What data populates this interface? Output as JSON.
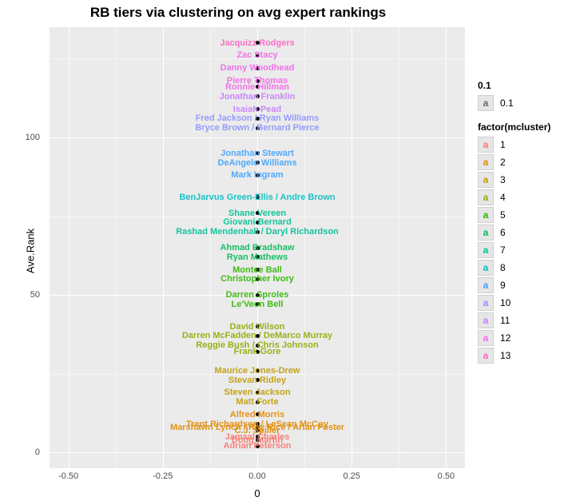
{
  "title": "RB tiers via clustering on avg expert rankings",
  "axes": {
    "xlabel": "0",
    "ylabel": "Ave.Rank",
    "xlim": [
      -0.55,
      0.55
    ],
    "ylim": [
      -5,
      135
    ],
    "xticks": [
      -0.5,
      -0.25,
      0.0,
      0.25,
      0.5
    ],
    "xtick_labels": [
      "-0.50",
      "-0.25",
      "0.00",
      "0.25",
      "0.50"
    ],
    "yticks": [
      0,
      50,
      100
    ],
    "ytick_labels": [
      "0",
      "50",
      "100"
    ],
    "xminor": [
      -0.375,
      -0.125,
      0.125,
      0.375
    ],
    "yminor": [
      25,
      75,
      125
    ],
    "major_grid_color": "#ffffff",
    "minor_grid_color": "#f5f5f5",
    "panel_bg": "#ebebeb",
    "label_fontsize": 13,
    "tick_fontsize": 11,
    "title_fontsize": 17
  },
  "points": [
    {
      "name": "Adrian Peterson",
      "y": 2,
      "cluster": 1
    },
    {
      "name": "Doug Martin",
      "y": 4,
      "cluster": 1
    },
    {
      "name": "Jamaal Charles",
      "y": 5,
      "cluster": 1
    },
    {
      "name": "C.J. Spiller",
      "y": 7,
      "cluster": 2
    },
    {
      "name": "Marshawn Lynch / Ray Rice / Arian Foster",
      "y": 8,
      "cluster": 2
    },
    {
      "name": "Trent Richardson / LeSean McCoy",
      "y": 9,
      "cluster": 2
    },
    {
      "name": "Alfred Morris",
      "y": 12,
      "cluster": 2
    },
    {
      "name": "Matt Forte",
      "y": 16,
      "cluster": 3
    },
    {
      "name": "Steven Jackson",
      "y": 19,
      "cluster": 3
    },
    {
      "name": "Stevan Ridley",
      "y": 23,
      "cluster": 3
    },
    {
      "name": "Maurice Jones-Drew",
      "y": 26,
      "cluster": 3
    },
    {
      "name": "Frank Gore",
      "y": 32,
      "cluster": 4
    },
    {
      "name": "Reggie Bush / Chris Johnson",
      "y": 34,
      "cluster": 4
    },
    {
      "name": "Darren McFadden / DeMarco Murray",
      "y": 37,
      "cluster": 4
    },
    {
      "name": "David Wilson",
      "y": 40,
      "cluster": 4
    },
    {
      "name": "Le'Veon Bell",
      "y": 47,
      "cluster": 5
    },
    {
      "name": "Darren Sproles",
      "y": 50,
      "cluster": 5
    },
    {
      "name": "Christopher Ivory",
      "y": 55,
      "cluster": 5
    },
    {
      "name": "Montee Ball",
      "y": 58,
      "cluster": 5
    },
    {
      "name": "Ryan Mathews",
      "y": 62,
      "cluster": 6
    },
    {
      "name": "Ahmad Bradshaw",
      "y": 65,
      "cluster": 6
    },
    {
      "name": "Rashad Mendenhall / Daryl Richardson",
      "y": 70,
      "cluster": 7
    },
    {
      "name": "Giovani Bernard",
      "y": 73,
      "cluster": 7
    },
    {
      "name": "Shane Vereen",
      "y": 76,
      "cluster": 7
    },
    {
      "name": "BenJarvus Green-Ellis / Andre Brown",
      "y": 81,
      "cluster": 8
    },
    {
      "name": "Mark Ingram",
      "y": 88,
      "cluster": 9
    },
    {
      "name": "DeAngelo Williams",
      "y": 92,
      "cluster": 9
    },
    {
      "name": "Jonathan Stewart",
      "y": 95,
      "cluster": 9
    },
    {
      "name": "Bryce Brown / Bernard Pierce",
      "y": 103,
      "cluster": 10
    },
    {
      "name": "Fred Jackson / Ryan Williams",
      "y": 106,
      "cluster": 10
    },
    {
      "name": "Isaiah Pead",
      "y": 109,
      "cluster": 11
    },
    {
      "name": "Jonathan Franklin",
      "y": 113,
      "cluster": 11
    },
    {
      "name": "Ronnie Hillman",
      "y": 116,
      "cluster": 12
    },
    {
      "name": "Pierre Thomas",
      "y": 118,
      "cluster": 12
    },
    {
      "name": "Danny Woodhead",
      "y": 122,
      "cluster": 12
    },
    {
      "name": "Zac Stacy",
      "y": 126,
      "cluster": 12
    },
    {
      "name": "Jacquizz Rodgers",
      "y": 130,
      "cluster": 13
    }
  ],
  "x_value": 0.0,
  "point_color": "#000000",
  "cluster_colors": {
    "1": "#f8766d",
    "2": "#e28a00",
    "3": "#bf9c00",
    "4": "#8ead00",
    "5": "#2db700",
    "6": "#00bb57",
    "7": "#00c094",
    "8": "#00bfc4",
    "9": "#3fa2ff",
    "10": "#8b93ff",
    "11": "#c77cff",
    "12": "#f166e8",
    "13": "#ff61c3"
  },
  "legend": {
    "alpha": {
      "title": "0.1",
      "item_label": "0.1",
      "swatch_glyph": "a",
      "glyph_color": "#666666"
    },
    "cluster": {
      "title": "factor(mcluster)",
      "items": [
        {
          "label": "1",
          "color": "#f8766d"
        },
        {
          "label": "2",
          "color": "#e28a00"
        },
        {
          "label": "3",
          "color": "#bf9c00"
        },
        {
          "label": "4",
          "color": "#8ead00"
        },
        {
          "label": "5",
          "color": "#2db700"
        },
        {
          "label": "6",
          "color": "#00bb57"
        },
        {
          "label": "7",
          "color": "#00c094"
        },
        {
          "label": "8",
          "color": "#00bfc4"
        },
        {
          "label": "9",
          "color": "#3fa2ff"
        },
        {
          "label": "10",
          "color": "#8b93ff"
        },
        {
          "label": "11",
          "color": "#c77cff"
        },
        {
          "label": "12",
          "color": "#f166e8"
        },
        {
          "label": "13",
          "color": "#ff61c3"
        }
      ],
      "swatch_glyph": "a"
    }
  }
}
